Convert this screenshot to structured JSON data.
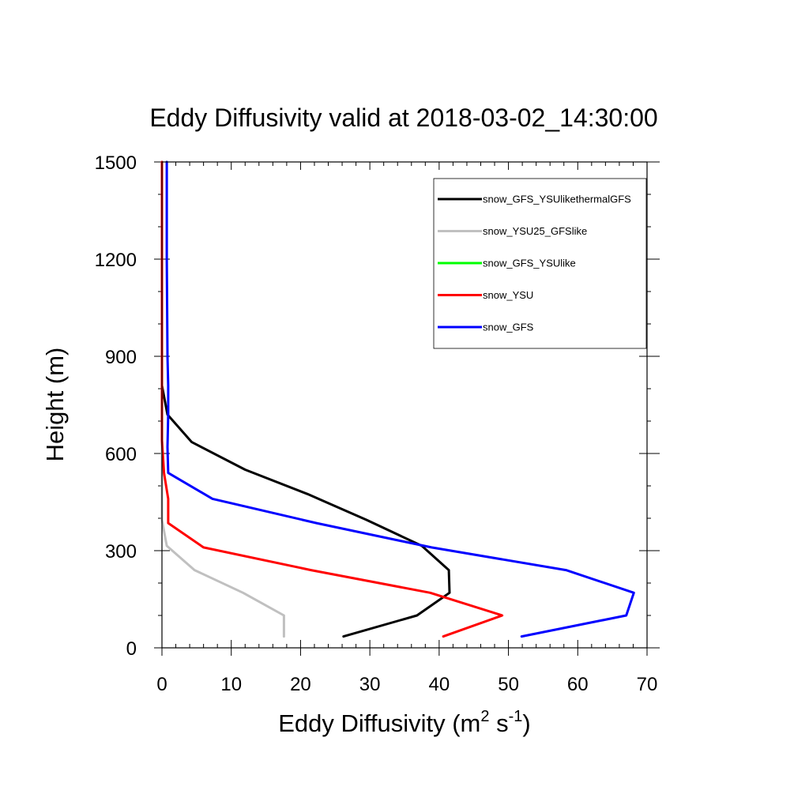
{
  "chart_data": {
    "type": "line",
    "title": "Eddy Diffusivity valid at 2018-03-02_14:30:00",
    "xlabel": {
      "base": "Eddy Diffusivity (m",
      "sup1": "2",
      "mid": " s",
      "sup2": "-1",
      "end": ")"
    },
    "ylabel": "Height (m)",
    "xlim": [
      0,
      70
    ],
    "ylim": [
      0,
      1500
    ],
    "xticks": [
      0,
      10,
      20,
      30,
      40,
      50,
      60,
      70
    ],
    "xtick_labels": [
      "0",
      "10",
      "20",
      "30",
      "40",
      "50",
      "60",
      "70"
    ],
    "yticks": [
      0,
      300,
      600,
      900,
      1200,
      1500
    ],
    "ytick_labels": [
      "0",
      "300",
      "600",
      "900",
      "1200",
      "1500"
    ],
    "legend_position": "top-right",
    "series": [
      {
        "name": "snow_GFS_YSUlikethermalGFS",
        "color": "#000000",
        "points": [
          [
            26.2,
            35
          ],
          [
            36.8,
            100
          ],
          [
            41.5,
            170
          ],
          [
            41.4,
            240
          ],
          [
            37.5,
            315
          ],
          [
            29.5,
            395
          ],
          [
            21,
            475
          ],
          [
            12,
            550
          ],
          [
            4.3,
            635
          ],
          [
            0.8,
            720
          ],
          [
            0,
            810
          ],
          [
            0,
            900
          ],
          [
            0,
            1200
          ],
          [
            0,
            1500
          ]
        ]
      },
      {
        "name": "snow_YSU25_GFSlike",
        "color": "#c0c0c0",
        "points": [
          [
            17.6,
            35
          ],
          [
            17.6,
            100
          ],
          [
            11.7,
            170
          ],
          [
            4.7,
            240
          ],
          [
            0.7,
            315
          ],
          [
            0,
            395
          ],
          [
            0,
            475
          ],
          [
            0,
            550
          ],
          [
            0,
            635
          ],
          [
            0,
            720
          ],
          [
            0,
            810
          ],
          [
            0,
            900
          ],
          [
            0,
            1200
          ],
          [
            0,
            1500
          ]
        ]
      },
      {
        "name": "snow_GFS_YSUlike",
        "color": "#00ff00",
        "points": []
      },
      {
        "name": "snow_YSU",
        "color": "#ff0000",
        "points": [
          [
            40.6,
            35
          ],
          [
            49.1,
            100
          ],
          [
            38.7,
            170
          ],
          [
            21.5,
            240
          ],
          [
            6,
            310
          ],
          [
            0.9,
            385
          ],
          [
            0.9,
            460
          ],
          [
            0.3,
            540
          ],
          [
            0,
            640
          ],
          [
            0,
            720
          ],
          [
            0,
            810
          ],
          [
            0,
            900
          ],
          [
            0,
            1200
          ],
          [
            0,
            1500
          ]
        ]
      },
      {
        "name": "snow_GFS",
        "color": "#0000ff",
        "points": [
          [
            51.9,
            35
          ],
          [
            67,
            100
          ],
          [
            68.1,
            170
          ],
          [
            58.3,
            240
          ],
          [
            38.9,
            310
          ],
          [
            22.3,
            385
          ],
          [
            7.3,
            460
          ],
          [
            0.9,
            540
          ],
          [
            0.8,
            620
          ],
          [
            0.9,
            720
          ],
          [
            0.9,
            810
          ],
          [
            0.8,
            900
          ],
          [
            0.7,
            1200
          ],
          [
            0.7,
            1500
          ]
        ]
      }
    ]
  }
}
